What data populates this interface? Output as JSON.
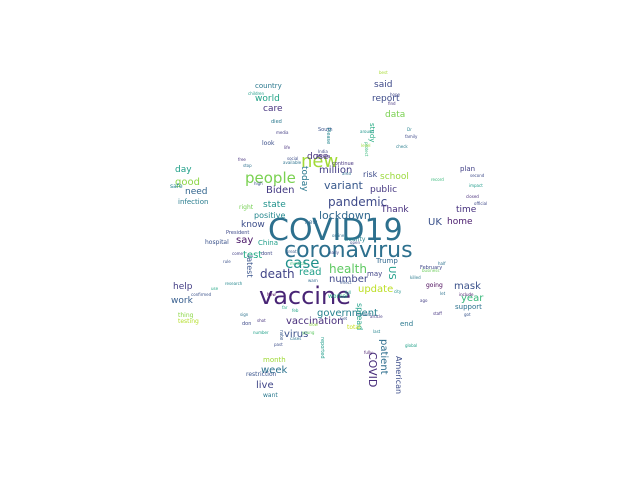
{
  "word_cloud": {
    "words": [
      {
        "text": "COVID19",
        "color": "#2d708e"
      },
      {
        "text": "vaccine",
        "color": "#482475"
      },
      {
        "text": "coronavirus",
        "color": "#2d708e"
      },
      {
        "text": "new",
        "color": "#a2da37"
      },
      {
        "text": "people",
        "color": "#7ad151"
      },
      {
        "text": "pandemic",
        "color": "#3e4a89"
      },
      {
        "text": "case",
        "color": "#21918c"
      },
      {
        "text": "death",
        "color": "#414487"
      },
      {
        "text": "health",
        "color": "#5ec962"
      },
      {
        "text": "variant",
        "color": "#38598c"
      },
      {
        "text": "lockdown",
        "color": "#31688e"
      },
      {
        "text": "million",
        "color": "#433e85"
      },
      {
        "text": "Biden",
        "color": "#443a83"
      },
      {
        "text": "dose",
        "color": "#46327e"
      },
      {
        "text": "government",
        "color": "#26828e"
      },
      {
        "text": "vaccination",
        "color": "#472d7b"
      },
      {
        "text": "mask",
        "color": "#3b528b"
      },
      {
        "text": "week",
        "color": "#2c728e"
      },
      {
        "text": "live",
        "color": "#404688"
      },
      {
        "text": "patient",
        "color": "#2e6e8e"
      },
      {
        "text": "COVID",
        "color": "#472c7a"
      },
      {
        "text": "test",
        "color": "#22a884"
      },
      {
        "text": "update",
        "color": "#bddf26"
      },
      {
        "text": "number",
        "color": "#3f4889"
      },
      {
        "text": "read",
        "color": "#1fa088"
      },
      {
        "text": "virus",
        "color": "#3b518b"
      },
      {
        "text": "year",
        "color": "#35b779"
      },
      {
        "text": "home",
        "color": "#481a6c"
      },
      {
        "text": "time",
        "color": "#46307e"
      },
      {
        "text": "UK",
        "color": "#3b528b"
      },
      {
        "text": "school",
        "color": "#9bd93c"
      },
      {
        "text": "Thank",
        "color": "#462f7e"
      },
      {
        "text": "public",
        "color": "#453781"
      },
      {
        "text": "risk",
        "color": "#3e4c8a"
      },
      {
        "text": "care",
        "color": "#46337f"
      },
      {
        "text": "world",
        "color": "#20a386"
      },
      {
        "text": "data",
        "color": "#7ad151"
      },
      {
        "text": "report",
        "color": "#3e4c8a"
      },
      {
        "text": "said",
        "color": "#3e4989"
      },
      {
        "text": "study",
        "color": "#25ab82"
      },
      {
        "text": "day",
        "color": "#1f9f88"
      },
      {
        "text": "good",
        "color": "#8bd646"
      },
      {
        "text": "need",
        "color": "#32658e"
      },
      {
        "text": "infection",
        "color": "#287c8e"
      },
      {
        "text": "know",
        "color": "#3d4e8a"
      },
      {
        "text": "say",
        "color": "#471365"
      },
      {
        "text": "state",
        "color": "#20928c"
      },
      {
        "text": "positive",
        "color": "#24878e"
      },
      {
        "text": "today",
        "color": "#2a788e"
      },
      {
        "text": "help",
        "color": "#433d84"
      },
      {
        "text": "work",
        "color": "#365d8d"
      },
      {
        "text": "latest",
        "color": "#3a548c"
      },
      {
        "text": "US",
        "color": "#1f9e89"
      },
      {
        "text": "month",
        "color": "#a0da39"
      },
      {
        "text": "country",
        "color": "#2a788e"
      },
      {
        "text": "plan",
        "color": "#424186"
      },
      {
        "text": "support",
        "color": "#2c718e"
      },
      {
        "text": "end",
        "color": "#2a788e"
      },
      {
        "text": "American",
        "color": "#3d4d8a"
      },
      {
        "text": "spread",
        "color": "#1fa188"
      },
      {
        "text": "Trump",
        "color": "#31688e"
      },
      {
        "text": "may",
        "color": "#414487"
      },
      {
        "text": "China",
        "color": "#1f9e89"
      },
      {
        "text": "testing",
        "color": "#b5de2b"
      },
      {
        "text": "restriction",
        "color": "#3a548c"
      },
      {
        "text": "want",
        "color": "#2a788e"
      },
      {
        "text": "worker",
        "color": "#25ac82"
      },
      {
        "text": "County",
        "color": "#26828e"
      },
      {
        "text": "total",
        "color": "#c8e020"
      },
      {
        "text": "going",
        "color": "#440154"
      },
      {
        "text": "safe",
        "color": "#24868e"
      },
      {
        "text": "hospital",
        "color": "#3b528b"
      },
      {
        "text": "President",
        "color": "#3e4989"
      },
      {
        "text": "February",
        "color": "#3f4788"
      },
      {
        "text": "look",
        "color": "#3c4f8a"
      },
      {
        "text": "right",
        "color": "#75d054"
      },
      {
        "text": "dont",
        "color": "#3f4788"
      },
      {
        "text": "rate",
        "color": "#38588c"
      },
      {
        "text": "reported",
        "color": "#1e9c89"
      },
      {
        "text": "new",
        "color": "#31688e"
      },
      {
        "text": "thing",
        "color": "#8bd646"
      },
      {
        "text": "don",
        "color": "#3e4a89"
      },
      {
        "text": "continue",
        "color": "#46337f"
      },
      {
        "text": "Africa",
        "color": "#46327e"
      },
      {
        "text": "South",
        "color": "#3b528b"
      },
      {
        "text": "children",
        "color": "#1f9e89"
      },
      {
        "text": "life",
        "color": "#472f7d"
      },
      {
        "text": "family",
        "color": "#3e4989"
      },
      {
        "text": "global",
        "color": "#1fa088"
      },
      {
        "text": "fully",
        "color": "#481b6d"
      },
      {
        "text": "impact",
        "color": "#1e9b8a"
      },
      {
        "text": "second",
        "color": "#3e4c8a"
      },
      {
        "text": "student",
        "color": "#31688e"
      },
      {
        "text": "business",
        "color": "#6ccd5a"
      },
      {
        "text": "Please",
        "color": "#24868e"
      },
      {
        "text": "died",
        "color": "#2a788e"
      },
      {
        "text": "media",
        "color": "#433d84"
      },
      {
        "text": "available",
        "color": "#2c728e"
      },
      {
        "text": "confirmed",
        "color": "#3b528b"
      },
      {
        "text": "research",
        "color": "#24878e"
      },
      {
        "text": "hope",
        "color": "#3f4788"
      },
      {
        "text": "find",
        "color": "#46337f"
      },
      {
        "text": "let",
        "color": "#2c718e"
      },
      {
        "text": "use",
        "color": "#22a785"
      },
      {
        "text": "free",
        "color": "#46307e"
      },
      {
        "text": "stop",
        "color": "#2d708e"
      },
      {
        "text": "great",
        "color": "#365c8d"
      },
      {
        "text": "social",
        "color": "#3d4d8a"
      },
      {
        "text": "medical",
        "color": "#37b878"
      },
      {
        "text": "include",
        "color": "#48186a"
      },
      {
        "text": "feb",
        "color": "#20a386"
      },
      {
        "text": "got",
        "color": "#39558c"
      },
      {
        "text": "Dr",
        "color": "#26828e"
      },
      {
        "text": "India",
        "color": "#404688"
      },
      {
        "text": "ago",
        "color": "#433e85"
      },
      {
        "text": "effect",
        "color": "#3a548c"
      },
      {
        "text": "protect",
        "color": "#35b779"
      },
      {
        "text": "article",
        "color": "#443983"
      },
      {
        "text": "killed",
        "color": "#29798e"
      },
      {
        "text": "number",
        "color": "#1fa088"
      },
      {
        "text": "online",
        "color": "#2e6f8e"
      },
      {
        "text": "past",
        "color": "#3d4e8a"
      },
      {
        "text": "young",
        "color": "#5ec962"
      },
      {
        "text": "slow",
        "color": "#8fd744"
      },
      {
        "text": "open",
        "color": "#3e4a89"
      },
      {
        "text": "closed",
        "color": "#472c7a"
      },
      {
        "text": "record",
        "color": "#35b779"
      },
      {
        "text": "half",
        "color": "#2c718e"
      },
      {
        "text": "staff",
        "color": "#463480"
      },
      {
        "text": "official",
        "color": "#3e4989"
      },
      {
        "text": "cases",
        "color": "#2b748e"
      },
      {
        "text": "city",
        "color": "#21918c"
      },
      {
        "text": "warn",
        "color": "#2f6b8e"
      },
      {
        "text": "New",
        "color": "#440154"
      },
      {
        "text": "come",
        "color": "#424086"
      },
      {
        "text": "rule",
        "color": "#3b518b"
      },
      {
        "text": "shot",
        "color": "#46327e"
      },
      {
        "text": "sign",
        "color": "#2c728e"
      },
      {
        "text": "far",
        "color": "#22a884"
      },
      {
        "text": "early",
        "color": "#3f4788"
      },
      {
        "text": "around",
        "color": "#1f958b"
      },
      {
        "text": "level",
        "color": "#9dd93b"
      },
      {
        "text": "area",
        "color": "#2d708e"
      },
      {
        "text": "full",
        "color": "#1f9a8a"
      },
      {
        "text": "Get",
        "color": "#3b528b"
      },
      {
        "text": "last",
        "color": "#25848e"
      },
      {
        "text": "high",
        "color": "#3c4f8a"
      },
      {
        "text": "check",
        "color": "#287d8e"
      },
      {
        "text": "best",
        "color": "#a8db34"
      }
    ]
  }
}
